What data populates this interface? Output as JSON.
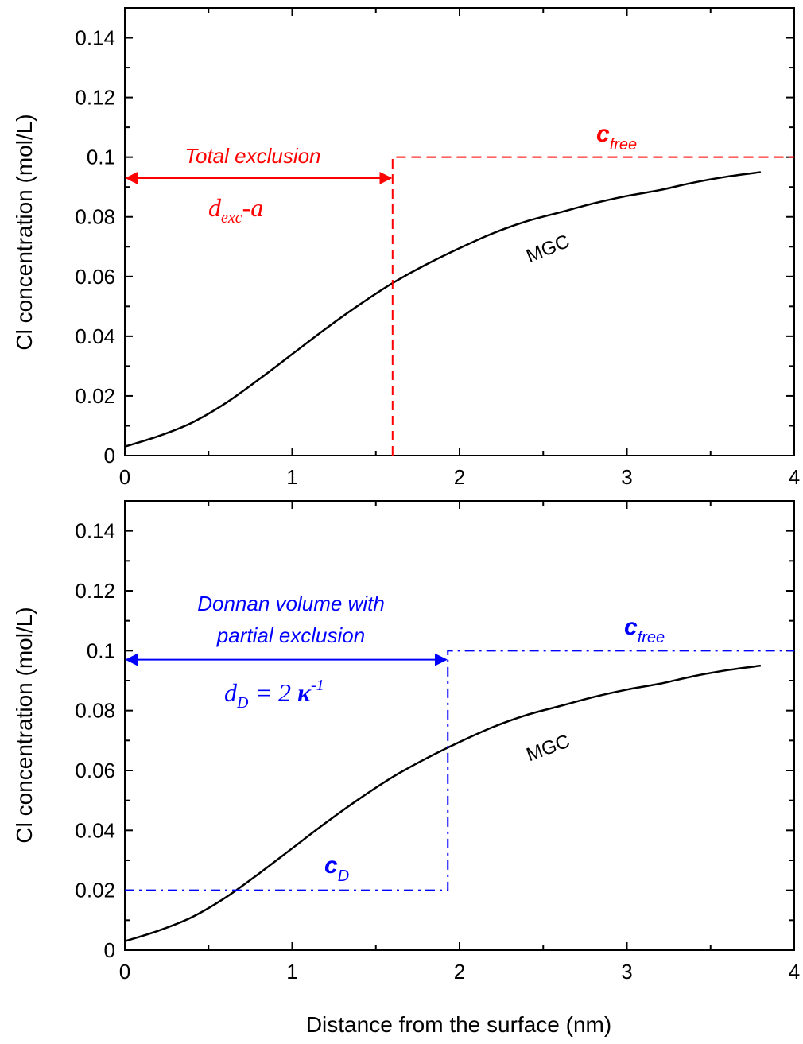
{
  "chart_data": [
    {
      "type": "line",
      "ylabel": "Cl concentration (mol/L)",
      "xlabel": "",
      "xlim": [
        0,
        4
      ],
      "ylim": [
        0,
        0.15
      ],
      "x_ticks": [
        "0",
        "1",
        "2",
        "3",
        "4"
      ],
      "y_ticks": [
        "0",
        "0.02",
        "0.04",
        "0.06",
        "0.08",
        "0.1",
        "0.12",
        "0.14"
      ],
      "series": [
        {
          "name": "MGC",
          "color": "#000000",
          "style": "solid",
          "x": [
            0,
            0.2,
            0.4,
            0.6,
            0.8,
            1.0,
            1.2,
            1.4,
            1.6,
            1.8,
            2.0,
            2.2,
            2.4,
            2.6,
            2.8,
            3.0,
            3.2,
            3.4,
            3.6,
            3.8
          ],
          "y": [
            0.003,
            0.0065,
            0.011,
            0.0175,
            0.0255,
            0.034,
            0.0425,
            0.0505,
            0.0578,
            0.064,
            0.0695,
            0.0745,
            0.0785,
            0.0815,
            0.0845,
            0.087,
            0.089,
            0.0915,
            0.0935,
            0.095
          ]
        },
        {
          "name": "c_free",
          "color": "#ff0000",
          "style": "dashed",
          "x": [
            1.6,
            1.6,
            4.0
          ],
          "y": [
            0,
            0.1,
            0.1
          ]
        }
      ],
      "annotations": {
        "arrow_label": "Total exclusion",
        "arrow_x": [
          0,
          1.6
        ],
        "arrow_y": 0.093,
        "distance_d": "d",
        "distance_sub": "exc",
        "distance_tail": "-a",
        "cfree_c": "c",
        "cfree_sub": "free",
        "curve_label": "MGC"
      },
      "accent": "#ff0000"
    },
    {
      "type": "line",
      "ylabel": "Cl concentration (mol/L)",
      "xlabel": "Distance from the surface (nm)",
      "xlim": [
        0,
        4
      ],
      "ylim": [
        0,
        0.15
      ],
      "x_ticks": [
        "0",
        "1",
        "2",
        "3",
        "4"
      ],
      "y_ticks": [
        "0",
        "0.02",
        "0.04",
        "0.06",
        "0.08",
        "0.1",
        "0.12",
        "0.14"
      ],
      "series": [
        {
          "name": "MGC",
          "color": "#000000",
          "style": "solid",
          "x": [
            0,
            0.2,
            0.4,
            0.6,
            0.8,
            1.0,
            1.2,
            1.4,
            1.6,
            1.8,
            2.0,
            2.2,
            2.4,
            2.6,
            2.8,
            3.0,
            3.2,
            3.4,
            3.6,
            3.8
          ],
          "y": [
            0.003,
            0.0065,
            0.011,
            0.0175,
            0.0255,
            0.034,
            0.0425,
            0.0505,
            0.0578,
            0.064,
            0.0695,
            0.0745,
            0.0785,
            0.0815,
            0.0845,
            0.087,
            0.089,
            0.0915,
            0.0935,
            0.095
          ]
        },
        {
          "name": "Donnan",
          "color": "#0000ff",
          "style": "dashdot",
          "x": [
            0,
            1.93,
            1.93,
            4.0
          ],
          "y": [
            0.02,
            0.02,
            0.1,
            0.1
          ]
        }
      ],
      "annotations": {
        "arrow_label_line1": "Donnan volume with",
        "arrow_label_line2": "partial exclusion",
        "arrow_x": [
          0,
          1.93
        ],
        "arrow_y": 0.097,
        "distance_d": "d",
        "distance_sub": "D",
        "distance_tail": " = 2 ",
        "distance_kappa": "κ",
        "distance_exp": "-1",
        "cfree_c": "c",
        "cfree_sub": "free",
        "cd_c": "c",
        "cd_sub": "D",
        "curve_label": "MGC"
      },
      "accent": "#0000ff"
    }
  ]
}
